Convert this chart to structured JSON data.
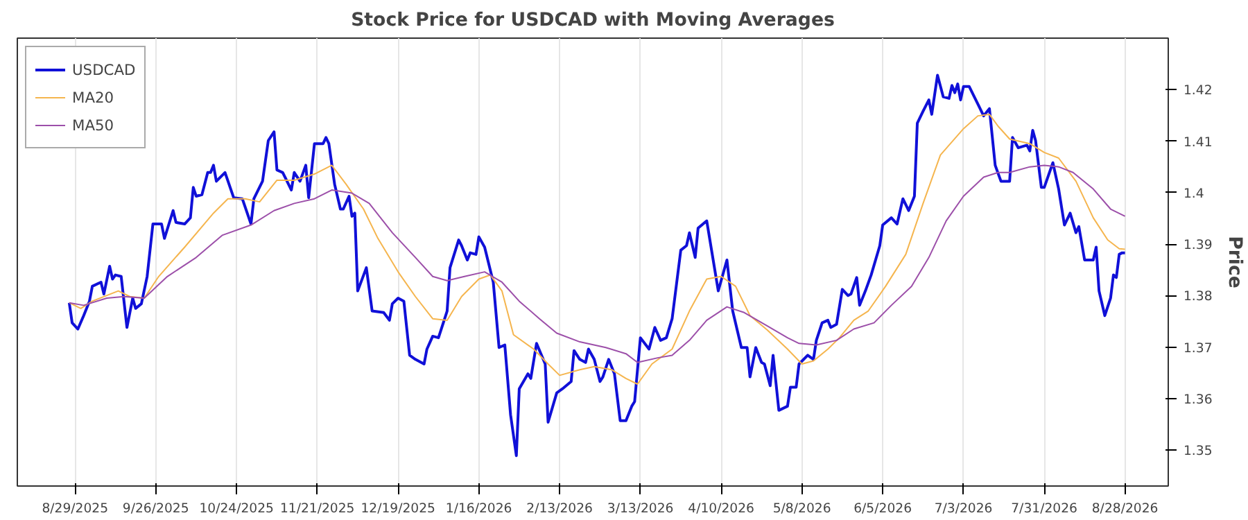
{
  "chart_data": {
    "type": "line",
    "title": "Stock Price for USDCAD with Moving Averages",
    "ylabel": "Price",
    "xlim": [
      "2025-08-09",
      "2026-09-12"
    ],
    "ylim": [
      1.343,
      1.43
    ],
    "xticks": [
      {
        "value": "2025-08-29",
        "label": "8/29/2025"
      },
      {
        "value": "2025-09-26",
        "label": "9/26/2025"
      },
      {
        "value": "2025-10-24",
        "label": "10/24/2025"
      },
      {
        "value": "2025-11-21",
        "label": "11/21/2025"
      },
      {
        "value": "2025-12-19",
        "label": "12/19/2025"
      },
      {
        "value": "2026-01-16",
        "label": "1/16/2026"
      },
      {
        "value": "2026-02-13",
        "label": "2/13/2026"
      },
      {
        "value": "2026-03-13",
        "label": "3/13/2026"
      },
      {
        "value": "2026-04-10",
        "label": "4/10/2026"
      },
      {
        "value": "2026-05-08",
        "label": "5/8/2026"
      },
      {
        "value": "2026-06-05",
        "label": "6/5/2026"
      },
      {
        "value": "2026-07-03",
        "label": "7/3/2026"
      },
      {
        "value": "2026-07-31",
        "label": "7/31/2026"
      },
      {
        "value": "2026-08-28",
        "label": "8/28/2026"
      }
    ],
    "yticks": [
      1.35,
      1.36,
      1.37,
      1.38,
      1.39,
      1.4,
      1.41,
      1.42
    ],
    "grid": "x",
    "legend": "top left",
    "line_style": "solid",
    "marker": "none",
    "series": [
      {
        "name": "USDCAD",
        "color": "#1010d8",
        "x": [
          "2025-08-27",
          "2025-08-28",
          "2025-08-30",
          "2025-09-01",
          "2025-09-03",
          "2025-09-04",
          "2025-09-07",
          "2025-09-08",
          "2025-09-10",
          "2025-09-11",
          "2025-09-12",
          "2025-09-14",
          "2025-09-16",
          "2025-09-18",
          "2025-09-19",
          "2025-09-21",
          "2025-09-23",
          "2025-09-25",
          "2025-09-28",
          "2025-09-29",
          "2025-10-02",
          "2025-10-03",
          "2025-10-06",
          "2025-10-08",
          "2025-10-09",
          "2025-10-10",
          "2025-10-12",
          "2025-10-14",
          "2025-10-15",
          "2025-10-16",
          "2025-10-17",
          "2025-10-20",
          "2025-10-23",
          "2025-10-26",
          "2025-10-29",
          "2025-10-30",
          "2025-11-02",
          "2025-11-04",
          "2025-11-06",
          "2025-11-07",
          "2025-11-09",
          "2025-11-12",
          "2025-11-13",
          "2025-11-15",
          "2025-11-17",
          "2025-11-18",
          "2025-11-20",
          "2025-11-23",
          "2025-11-24",
          "2025-11-25",
          "2025-11-27",
          "2025-11-29",
          "2025-11-30",
          "2025-12-02",
          "2025-12-03",
          "2025-12-04",
          "2025-12-05",
          "2025-12-08",
          "2025-12-10",
          "2025-12-14",
          "2025-12-16",
          "2025-12-17",
          "2025-12-19",
          "2025-12-21",
          "2025-12-23",
          "2025-12-25",
          "2025-12-28",
          "2025-12-29",
          "2025-12-31",
          "2026-01-02",
          "2026-01-05",
          "2026-01-06",
          "2026-01-09",
          "2026-01-10",
          "2026-01-12",
          "2026-01-13",
          "2026-01-15",
          "2026-01-16",
          "2026-01-18",
          "2026-01-21",
          "2026-01-23",
          "2026-01-25",
          "2026-01-27",
          "2026-01-29",
          "2026-01-30",
          "2026-02-02",
          "2026-02-03",
          "2026-02-05",
          "2026-02-08",
          "2026-02-09",
          "2026-02-12",
          "2026-02-14",
          "2026-02-17",
          "2026-02-18",
          "2026-02-20",
          "2026-02-22",
          "2026-02-23",
          "2026-02-25",
          "2026-02-27",
          "2026-02-28",
          "2026-03-02",
          "2026-03-04",
          "2026-03-06",
          "2026-03-08",
          "2026-03-10",
          "2026-03-11",
          "2026-03-13",
          "2026-03-16",
          "2026-03-18",
          "2026-03-20",
          "2026-03-22",
          "2026-03-24",
          "2026-03-27",
          "2026-03-29",
          "2026-03-30",
          "2026-04-01",
          "2026-04-02",
          "2026-04-05",
          "2026-04-09",
          "2026-04-12",
          "2026-04-14",
          "2026-04-17",
          "2026-04-19",
          "2026-04-20",
          "2026-04-22",
          "2026-04-24",
          "2026-04-25",
          "2026-04-27",
          "2026-04-28",
          "2026-04-30",
          "2026-05-03",
          "2026-05-04",
          "2026-05-06",
          "2026-05-07",
          "2026-05-10",
          "2026-05-12",
          "2026-05-13",
          "2026-05-15",
          "2026-05-17",
          "2026-05-18",
          "2026-05-20",
          "2026-05-22",
          "2026-05-24",
          "2026-05-25",
          "2026-05-27",
          "2026-05-28",
          "2026-05-30",
          "2026-06-01",
          "2026-06-04",
          "2026-06-05",
          "2026-06-08",
          "2026-06-10",
          "2026-06-12",
          "2026-06-14",
          "2026-06-16",
          "2026-06-17",
          "2026-06-19",
          "2026-06-21",
          "2026-06-22",
          "2026-06-24",
          "2026-06-26",
          "2026-06-28",
          "2026-06-29",
          "2026-06-30",
          "2026-07-01",
          "2026-07-02",
          "2026-07-03",
          "2026-07-05",
          "2026-07-08",
          "2026-07-10",
          "2026-07-12",
          "2026-07-14",
          "2026-07-16",
          "2026-07-19",
          "2026-07-20",
          "2026-07-22",
          "2026-07-25",
          "2026-07-26",
          "2026-07-27",
          "2026-07-28",
          "2026-07-30",
          "2026-07-31",
          "2026-08-03",
          "2026-08-05",
          "2026-08-07",
          "2026-08-09",
          "2026-08-11",
          "2026-08-12",
          "2026-08-14",
          "2026-08-17",
          "2026-08-18",
          "2026-08-19",
          "2026-08-21",
          "2026-08-23",
          "2026-08-24",
          "2026-08-25",
          "2026-08-26",
          "2026-08-27",
          "2026-08-28"
        ],
        "values": [
          1.3786,
          1.3747,
          1.3735,
          1.3761,
          1.3789,
          1.3818,
          1.3826,
          1.3803,
          1.3857,
          1.3832,
          1.384,
          1.3837,
          1.3738,
          1.3795,
          1.3775,
          1.3784,
          1.3837,
          1.3939,
          1.3939,
          1.3911,
          1.3965,
          1.3942,
          1.3939,
          1.3951,
          1.401,
          1.3993,
          1.3996,
          1.4039,
          1.4039,
          1.4053,
          1.4022,
          1.4039,
          1.399,
          1.3988,
          1.3939,
          1.3988,
          1.4022,
          1.4101,
          1.4118,
          1.4044,
          1.4039,
          1.4005,
          1.4039,
          1.4022,
          1.4053,
          1.399,
          1.4095,
          1.4095,
          1.4107,
          1.4095,
          1.4016,
          1.3968,
          1.3968,
          1.3993,
          1.3954,
          1.396,
          1.3809,
          1.3854,
          1.377,
          1.3767,
          1.3752,
          1.3784,
          1.3795,
          1.3789,
          1.3684,
          1.3676,
          1.3667,
          1.3696,
          1.3721,
          1.3718,
          1.377,
          1.3854,
          1.3908,
          1.3897,
          1.3869,
          1.3883,
          1.388,
          1.3914,
          1.3894,
          1.3826,
          1.3699,
          1.3704,
          1.3568,
          1.3489,
          1.3619,
          1.3648,
          1.3639,
          1.3707,
          1.3667,
          1.3554,
          1.3611,
          1.3619,
          1.3633,
          1.3693,
          1.3676,
          1.367,
          1.3696,
          1.3676,
          1.3633,
          1.3642,
          1.3676,
          1.3648,
          1.3557,
          1.3557,
          1.3585,
          1.3594,
          1.3718,
          1.3696,
          1.3738,
          1.3713,
          1.3718,
          1.3755,
          1.3888,
          1.3897,
          1.3922,
          1.3874,
          1.3931,
          1.3945,
          1.3809,
          1.3869,
          1.377,
          1.3699,
          1.3699,
          1.3642,
          1.3699,
          1.367,
          1.3667,
          1.3625,
          1.3684,
          1.3577,
          1.3585,
          1.3622,
          1.3622,
          1.3667,
          1.3684,
          1.3676,
          1.3713,
          1.3747,
          1.3752,
          1.3738,
          1.3744,
          1.3812,
          1.38,
          1.3803,
          1.3835,
          1.3781,
          1.3809,
          1.384,
          1.3897,
          1.3937,
          1.3951,
          1.3939,
          1.3988,
          1.3965,
          1.3993,
          1.4135,
          1.4158,
          1.418,
          1.4152,
          1.4228,
          1.4186,
          1.4183,
          1.4208,
          1.4194,
          1.4211,
          1.418,
          1.4206,
          1.4206,
          1.4172,
          1.4149,
          1.4163,
          1.4053,
          1.4022,
          1.4022,
          1.4107,
          1.4087,
          1.4092,
          1.4081,
          1.4121,
          1.4101,
          1.401,
          1.401,
          1.4058,
          1.4007,
          1.3937,
          1.396,
          1.3922,
          1.3934,
          1.3869,
          1.3869,
          1.3894,
          1.3809,
          1.3761,
          1.3795,
          1.384,
          1.3835,
          1.388,
          1.3883,
          1.3883
        ]
      },
      {
        "name": "MA20",
        "color": "#f5b54e",
        "x": [
          "2025-08-27",
          "2025-08-31",
          "2025-09-04",
          "2025-09-13",
          "2025-09-17",
          "2025-09-22",
          "2025-09-27",
          "2025-10-06",
          "2025-10-16",
          "2025-10-21",
          "2025-10-27",
          "2025-11-01",
          "2025-11-07",
          "2025-11-13",
          "2025-11-20",
          "2025-11-26",
          "2025-12-01",
          "2025-12-07",
          "2025-12-12",
          "2025-12-19",
          "2025-12-25",
          "2025-12-31",
          "2026-01-05",
          "2026-01-10",
          "2026-01-16",
          "2026-01-20",
          "2026-01-24",
          "2026-01-28",
          "2026-02-04",
          "2026-02-09",
          "2026-02-13",
          "2026-02-20",
          "2026-02-25",
          "2026-03-03",
          "2026-03-08",
          "2026-03-12",
          "2026-03-17",
          "2026-03-24",
          "2026-03-30",
          "2026-04-05",
          "2026-04-10",
          "2026-04-15",
          "2026-04-20",
          "2026-04-26",
          "2026-05-03",
          "2026-05-08",
          "2026-05-12",
          "2026-05-17",
          "2026-05-21",
          "2026-05-26",
          "2026-05-31",
          "2026-06-06",
          "2026-06-13",
          "2026-06-19",
          "2026-06-25",
          "2026-07-03",
          "2026-07-08",
          "2026-07-12",
          "2026-07-15",
          "2026-07-19",
          "2026-07-26",
          "2026-07-31",
          "2026-08-05",
          "2026-08-11",
          "2026-08-17",
          "2026-08-22",
          "2026-08-26",
          "2026-08-28"
        ],
        "values": [
          1.3786,
          1.3775,
          1.3789,
          1.3809,
          1.3798,
          1.3795,
          1.3837,
          1.3894,
          1.396,
          1.3988,
          1.3988,
          1.3982,
          1.4024,
          1.4024,
          1.4036,
          1.4053,
          1.4016,
          1.3968,
          1.3911,
          1.3846,
          1.3798,
          1.3755,
          1.3752,
          1.3798,
          1.3832,
          1.384,
          1.3809,
          1.3724,
          1.3696,
          1.3667,
          1.3645,
          1.3656,
          1.3662,
          1.3656,
          1.3639,
          1.3628,
          1.3667,
          1.3696,
          1.377,
          1.3832,
          1.3837,
          1.3818,
          1.3761,
          1.3733,
          1.3696,
          1.3667,
          1.3673,
          1.3696,
          1.3718,
          1.3752,
          1.377,
          1.3818,
          1.388,
          1.3979,
          1.4073,
          1.4124,
          1.4149,
          1.4152,
          1.4129,
          1.4104,
          1.4095,
          1.4078,
          1.4067,
          1.4022,
          1.3951,
          1.3908,
          1.3891,
          1.389
        ]
      },
      {
        "name": "MA50",
        "color": "#9c4fa9",
        "x": [
          "2025-08-27",
          "2025-09-01",
          "2025-09-09",
          "2025-09-15",
          "2025-09-22",
          "2025-09-30",
          "2025-10-10",
          "2025-10-19",
          "2025-10-29",
          "2025-11-06",
          "2025-11-13",
          "2025-11-20",
          "2025-11-26",
          "2025-12-03",
          "2025-12-09",
          "2025-12-17",
          "2025-12-25",
          "2025-12-31",
          "2026-01-05",
          "2026-01-11",
          "2026-01-18",
          "2026-01-24",
          "2026-01-30",
          "2026-02-06",
          "2026-02-12",
          "2026-02-20",
          "2026-03-01",
          "2026-03-08",
          "2026-03-12",
          "2026-03-19",
          "2026-03-24",
          "2026-03-30",
          "2026-04-05",
          "2026-04-12",
          "2026-04-18",
          "2026-04-26",
          "2026-05-03",
          "2026-05-07",
          "2026-05-13",
          "2026-05-20",
          "2026-05-26",
          "2026-06-02",
          "2026-06-08",
          "2026-06-15",
          "2026-06-21",
          "2026-06-27",
          "2026-07-03",
          "2026-07-10",
          "2026-07-15",
          "2026-07-19",
          "2026-07-26",
          "2026-07-31",
          "2026-08-05",
          "2026-08-10",
          "2026-08-17",
          "2026-08-23",
          "2026-08-28"
        ],
        "values": [
          1.3786,
          1.3781,
          1.3795,
          1.3798,
          1.3795,
          1.3837,
          1.3874,
          1.3917,
          1.3937,
          1.3965,
          1.3979,
          1.3988,
          1.4005,
          1.3999,
          1.3979,
          1.3922,
          1.3874,
          1.3837,
          1.3829,
          1.3837,
          1.3846,
          1.3826,
          1.3789,
          1.3755,
          1.3727,
          1.371,
          1.3699,
          1.3687,
          1.367,
          1.3679,
          1.3684,
          1.3713,
          1.3752,
          1.3778,
          1.3767,
          1.3741,
          1.3718,
          1.3707,
          1.3704,
          1.3713,
          1.3735,
          1.3747,
          1.3781,
          1.3818,
          1.3874,
          1.3945,
          1.3993,
          1.403,
          1.4039,
          1.4039,
          1.405,
          1.4053,
          1.405,
          1.4039,
          1.4007,
          1.3968,
          1.3954
        ]
      }
    ]
  }
}
